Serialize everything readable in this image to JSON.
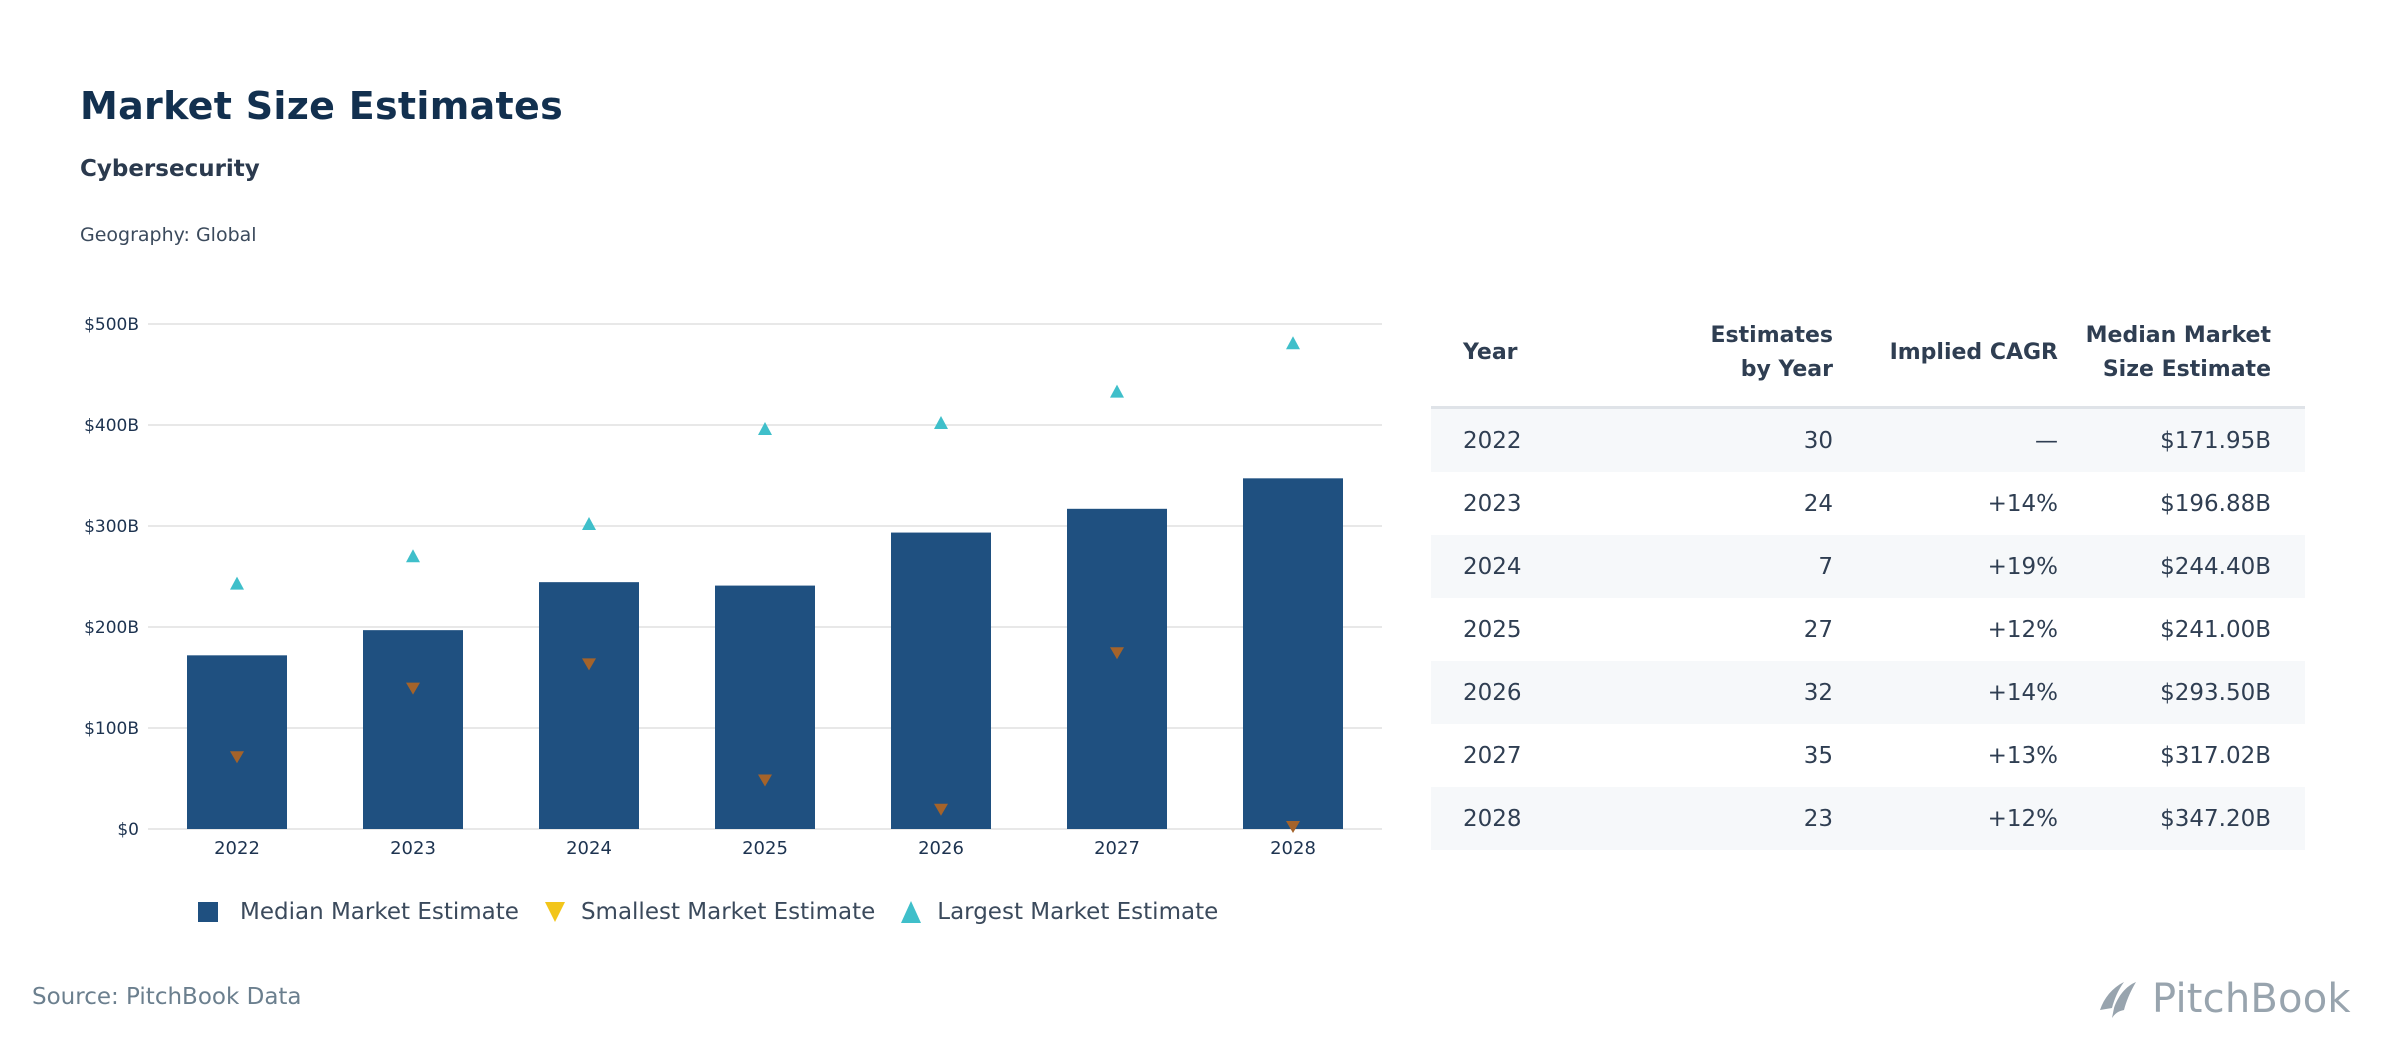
{
  "header": {
    "title": "Market Size Estimates",
    "subtitle": "Cybersecurity",
    "geography": "Geography: Global"
  },
  "colors": {
    "median_bar": "#1f5080",
    "smallest_marker": "#a4632a",
    "smallest_legend": "#f2c51a",
    "largest_marker": "#3fbfca",
    "positive_cagr": "#2a9d8f",
    "gridline": "#e8e8e8"
  },
  "chart_data": {
    "type": "bar",
    "title": "Market Size Estimates",
    "xlabel": "",
    "ylabel": "",
    "categories": [
      "2022",
      "2023",
      "2024",
      "2025",
      "2026",
      "2027",
      "2028"
    ],
    "ylim": [
      0,
      500
    ],
    "y_unit": "B USD",
    "yticks": [
      0,
      100,
      200,
      300,
      400,
      500
    ],
    "ytick_labels": [
      "$0",
      "$100B",
      "$200B",
      "$300B",
      "$400B",
      "$500B"
    ],
    "grid": true,
    "legend_position": "bottom",
    "series": [
      {
        "name": "Median Market Estimate",
        "type": "bar",
        "values": [
          171.95,
          196.88,
          244.4,
          241.0,
          293.5,
          317.02,
          347.2
        ]
      },
      {
        "name": "Smallest Market Estimate",
        "type": "marker-triangle-down",
        "values": [
          71,
          139,
          163,
          48,
          19,
          174,
          2
        ]
      },
      {
        "name": "Largest Market Estimate",
        "type": "marker-triangle-up",
        "values": [
          243,
          270,
          302,
          396,
          402,
          433,
          481
        ]
      }
    ]
  },
  "legend": {
    "items": [
      {
        "label": "Median Market Estimate",
        "icon": "square-icon"
      },
      {
        "label": "Smallest Market Estimate",
        "icon": "triangle-down-icon"
      },
      {
        "label": "Largest Market Estimate",
        "icon": "triangle-up-icon"
      }
    ]
  },
  "table": {
    "headers": {
      "year": "Year",
      "estimates_line1": "Estimates",
      "estimates_line2": "by Year",
      "cagr": "Implied CAGR",
      "median_line1": "Median Market",
      "median_line2": "Size Estimate"
    },
    "rows": [
      {
        "year": "2022",
        "estimates": "30",
        "cagr": "—",
        "median": "$171.95B"
      },
      {
        "year": "2023",
        "estimates": "24",
        "cagr": "+14%",
        "median": "$196.88B"
      },
      {
        "year": "2024",
        "estimates": "7",
        "cagr": "+19%",
        "median": "$244.40B"
      },
      {
        "year": "2025",
        "estimates": "27",
        "cagr": "+12%",
        "median": "$241.00B"
      },
      {
        "year": "2026",
        "estimates": "32",
        "cagr": "+14%",
        "median": "$293.50B"
      },
      {
        "year": "2027",
        "estimates": "35",
        "cagr": "+13%",
        "median": "$317.02B"
      },
      {
        "year": "2028",
        "estimates": "23",
        "cagr": "+12%",
        "median": "$347.20B"
      }
    ]
  },
  "footer": {
    "source": "Source: PitchBook Data",
    "logo_text": "PitchBook"
  }
}
